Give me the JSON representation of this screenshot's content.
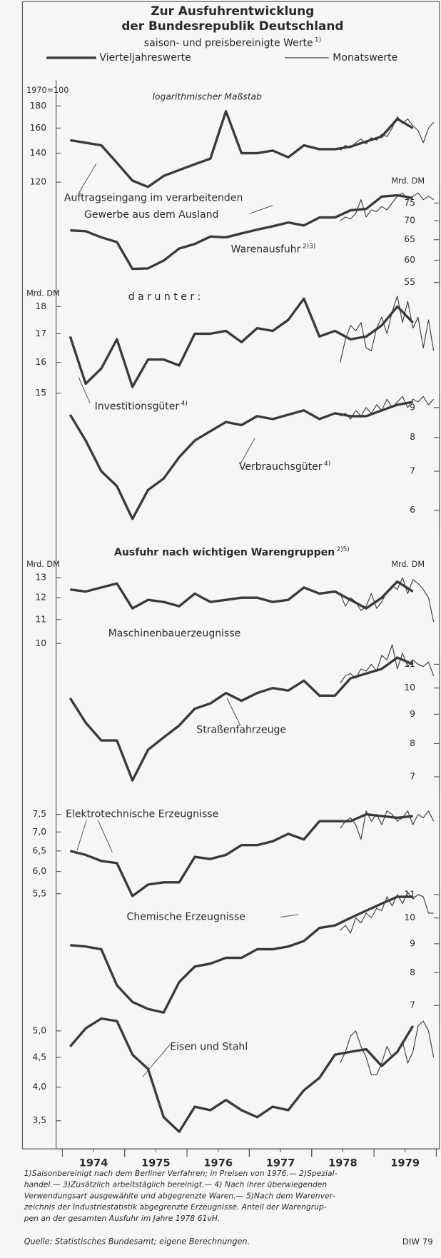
{
  "title": [
    "Zur Ausfuhrentwicklung",
    "der Bundesrepublik Deutschland"
  ],
  "subtitle": "saison- und preisbereinigte Werte",
  "subtitle_note": "1)",
  "legend": [
    "Vierteljahreswerte",
    "Monatswerte"
  ],
  "scale_note": "logarithmischer Maßstab",
  "section_title": "Ausfuhr nach wichtigen Warengruppen",
  "section_note": "2)5)",
  "color": "#3a3a3a",
  "xlim": [
    1973.9,
    1980.05
  ],
  "xticks": [
    {
      "value": 1974.5,
      "label": "1974"
    },
    {
      "value": 1975.5,
      "label": "1975"
    },
    {
      "value": 1976.5,
      "label": "1976"
    },
    {
      "value": 1977.5,
      "label": "1977"
    },
    {
      "value": 1978.5,
      "label": "1978"
    },
    {
      "value": 1979.5,
      "label": "1979"
    }
  ],
  "quarters": [
    1974.125,
    1974.375,
    1974.625,
    1974.875,
    1975.125,
    1975.375,
    1975.625,
    1975.875,
    1976.125,
    1976.375,
    1976.625,
    1976.875,
    1977.125,
    1977.375,
    1977.625,
    1977.875,
    1978.125,
    1978.375,
    1978.625,
    1978.875,
    1979.125,
    1979.375,
    1979.625
  ],
  "months": [
    1978.458,
    1978.542,
    1978.625,
    1978.708,
    1978.792,
    1978.875,
    1978.958,
    1979.042,
    1979.125,
    1979.208,
    1979.292,
    1979.375,
    1979.458,
    1979.542,
    1979.625,
    1979.708,
    1979.792,
    1979.875,
    1979.958
  ],
  "chart_data": [
    {
      "type": "line",
      "label": [
        "Auftragseingang im verarbeitenden",
        "Gewerbe aus dem Ausland"
      ],
      "unit": "1970=100",
      "side": "left",
      "log": true,
      "ylim": [
        110,
        185
      ],
      "yticks": [
        120,
        140,
        160,
        180
      ],
      "series": [
        {
          "values": [
            150,
            148,
            146,
            133,
            121,
            117,
            124,
            128,
            132,
            136,
            175,
            140,
            140,
            142,
            137,
            146,
            143,
            143,
            145,
            149,
            153,
            168,
            160
          ]
        },
        {
          "values": [
            142,
            146,
            144,
            148,
            151,
            147,
            152,
            150,
            155,
            153,
            160,
            170,
            164,
            168,
            162,
            158,
            148,
            160,
            165
          ]
        }
      ]
    },
    {
      "type": "line",
      "label": [
        "Warenausfuhr"
      ],
      "note": "2)3)",
      "unit": "Mrd. DM",
      "side": "right",
      "log": true,
      "ylim": [
        54,
        80
      ],
      "yticks": [
        55,
        60,
        65,
        70,
        75
      ],
      "series": [
        {
          "values": [
            67.4,
            67.2,
            65.6,
            64.4,
            58,
            58.1,
            59.9,
            62.8,
            63.9,
            65.8,
            65.6,
            66.6,
            67.6,
            68.5,
            69.5,
            68.7,
            70.9,
            70.9,
            72.9,
            73.3,
            76.9,
            77.3,
            76.5
          ]
        },
        {
          "values": [
            70,
            71,
            70.5,
            72,
            76,
            71,
            73,
            72.5,
            74,
            73,
            75,
            77,
            78,
            76,
            77,
            78,
            76,
            77,
            76
          ]
        }
      ]
    },
    {
      "type": "line",
      "label": [
        "Investitionsgüter"
      ],
      "note": "4)",
      "annotation": "darunter:",
      "unit": "Mrd. DM",
      "side": "left",
      "log": true,
      "ylim": [
        14.8,
        18.6
      ],
      "yticks": [
        15,
        16,
        17,
        18
      ],
      "series": [
        {
          "values": [
            16.9,
            15.3,
            15.8,
            16.8,
            15.2,
            16.1,
            16.1,
            15.9,
            17.0,
            17.0,
            17.1,
            16.7,
            17.2,
            17.1,
            17.5,
            18.3,
            16.9,
            17.1,
            16.8,
            16.9,
            17.3,
            18.0,
            17.4
          ]
        },
        {
          "values": [
            16.0,
            16.8,
            17.3,
            17.1,
            17.4,
            16.5,
            16.4,
            17.2,
            17.6,
            17.0,
            17.8,
            18.4,
            17.4,
            18.2,
            17.2,
            17.6,
            16.5,
            17.5,
            16.4
          ]
        }
      ]
    },
    {
      "type": "line",
      "label": [
        "Verbrauchsgüter"
      ],
      "note": "4)",
      "side": "right",
      "log": true,
      "ylim": [
        5.5,
        9.5
      ],
      "yticks": [
        6,
        7,
        8,
        9
      ],
      "series": [
        {
          "values": [
            8.75,
            7.9,
            7.0,
            6.6,
            5.8,
            6.5,
            6.8,
            7.4,
            7.9,
            8.2,
            8.5,
            8.4,
            8.7,
            8.6,
            8.75,
            8.9,
            8.6,
            8.8,
            8.7,
            8.7,
            8.9,
            9.1,
            9.2
          ]
        },
        {
          "values": [
            8.7,
            8.8,
            8.6,
            8.9,
            8.7,
            9.0,
            8.8,
            9.1,
            8.9,
            9.3,
            9.0,
            9.2,
            9.4,
            9.0,
            9.3,
            9.2,
            9.4,
            9.1,
            9.3
          ]
        }
      ]
    },
    {
      "type": "line",
      "label": [
        "Maschinenbauerzeugnisse"
      ],
      "unit": "Mrd. DM",
      "side": "left",
      "log": true,
      "ylim": [
        9.5,
        13.5
      ],
      "yticks": [
        10,
        11,
        12,
        13
      ],
      "series": [
        {
          "values": [
            12.4,
            12.3,
            12.5,
            12.7,
            11.5,
            11.9,
            11.8,
            11.6,
            12.2,
            11.8,
            11.9,
            12.0,
            12.0,
            11.8,
            11.9,
            12.5,
            12.2,
            12.3,
            11.9,
            11.5,
            12.0,
            12.8,
            12.3
          ]
        },
        {
          "values": [
            12.2,
            11.6,
            12.0,
            11.8,
            11.4,
            11.6,
            12.2,
            11.5,
            11.8,
            12.3,
            12.6,
            12.4,
            13.0,
            12.2,
            12.9,
            12.7,
            12.4,
            12.0,
            10.9
          ]
        }
      ]
    },
    {
      "type": "line",
      "label": [
        "Straßenfahrzeuge"
      ],
      "unit": "Mrd. DM",
      "side": "right",
      "log": true,
      "ylim": [
        6.5,
        11.5
      ],
      "yticks": [
        7,
        8,
        9,
        10,
        11
      ],
      "series": [
        {
          "values": [
            9.6,
            8.7,
            8.1,
            8.1,
            6.9,
            7.8,
            8.2,
            8.6,
            9.2,
            9.4,
            9.8,
            9.5,
            9.8,
            10.0,
            9.9,
            10.3,
            9.7,
            9.7,
            10.4,
            10.6,
            10.8,
            11.3,
            11.0
          ]
        },
        {
          "values": [
            10.2,
            10.5,
            10.6,
            10.4,
            10.8,
            10.7,
            11.0,
            10.7,
            11.4,
            11.2,
            11.9,
            10.8,
            11.5,
            10.9,
            11.2,
            11.0,
            10.9,
            11.1,
            10.5
          ]
        }
      ]
    },
    {
      "type": "line",
      "label": [
        "Elektrotechnische Erzeugnisse"
      ],
      "side": "left",
      "log": true,
      "ylim": [
        5.2,
        7.8
      ],
      "yticks": [
        {
          "value": 7.5,
          "label": "7,5"
        },
        {
          "value": 7.0,
          "label": "7,0"
        },
        {
          "value": 6.5,
          "label": "6,5"
        },
        {
          "value": 6.0,
          "label": "6,0"
        },
        {
          "value": 5.5,
          "label": "5,5"
        }
      ],
      "series": [
        {
          "values": [
            6.5,
            6.4,
            6.25,
            6.2,
            5.45,
            5.7,
            5.75,
            5.75,
            6.35,
            6.3,
            6.4,
            6.65,
            6.65,
            6.75,
            6.95,
            6.8,
            7.3,
            7.3,
            7.3,
            7.5,
            7.45,
            7.4,
            7.45
          ]
        },
        {
          "values": [
            7.1,
            7.3,
            7.4,
            7.2,
            6.8,
            7.6,
            7.3,
            7.5,
            7.2,
            7.6,
            7.5,
            7.3,
            7.4,
            7.6,
            7.2,
            7.5,
            7.4,
            7.6,
            7.3
          ]
        }
      ]
    },
    {
      "type": "line",
      "label": [
        "Chemische Erzeugnisse"
      ],
      "side": "right",
      "log": true,
      "ylim": [
        6.5,
        11.5
      ],
      "yticks": [
        7,
        8,
        9,
        10,
        11
      ],
      "series": [
        {
          "values": [
            8.95,
            8.9,
            8.8,
            7.6,
            7.1,
            6.9,
            6.8,
            7.7,
            8.2,
            8.3,
            8.5,
            8.5,
            8.8,
            8.8,
            8.9,
            9.1,
            9.6,
            9.7,
            10.0,
            10.3,
            10.6,
            10.9,
            10.9
          ]
        },
        {
          "values": [
            9.5,
            9.7,
            9.4,
            10.0,
            9.8,
            10.2,
            10.0,
            10.4,
            10.3,
            10.9,
            10.5,
            11.0,
            10.6,
            11.1,
            10.8,
            11.0,
            10.9,
            10.2,
            10.2
          ]
        }
      ]
    },
    {
      "type": "line",
      "label": [
        "Eisen und Stahl"
      ],
      "side": "left",
      "log": true,
      "ylim": [
        3.2,
        5.4
      ],
      "yticks": [
        {
          "value": 5,
          "label": "5,0"
        },
        {
          "value": 4.5,
          "label": "4,5"
        },
        {
          "value": 4,
          "label": "4,0"
        },
        {
          "value": 3.5,
          "label": "3,5"
        }
      ],
      "series": [
        {
          "values": [
            4.7,
            5.05,
            5.25,
            5.2,
            4.55,
            4.3,
            3.55,
            3.35,
            3.7,
            3.65,
            3.8,
            3.65,
            3.55,
            3.7,
            3.65,
            3.95,
            4.15,
            4.55,
            4.6,
            4.65,
            4.35,
            4.6,
            5.1
          ]
        },
        {
          "values": [
            4.4,
            4.6,
            4.9,
            5.0,
            4.7,
            4.5,
            4.2,
            4.2,
            4.4,
            4.7,
            4.5,
            4.6,
            4.8,
            4.4,
            4.6,
            5.1,
            5.2,
            5.0,
            4.5
          ]
        }
      ]
    }
  ],
  "footnotes": [
    "1)Saisonbereinigt nach dem Berliner Verfahren; in Preisen von 1976.— 2)Spezial-",
    "handel.— 3)Zusätzlich arbeitstäglich bereinigt.— 4) Nach ihrer überwiegenden",
    "Verwendungsart ausgewählte und abgegrenzte Waren.— 5)Nach dem Warenver-",
    "zeichnis der Industriestatistik abgegrenzte Erzeugnisse. Anteil der Warengrup-",
    "pen an der gesamten Ausfuhr im Jahre 1978 61vH."
  ],
  "source": "Quelle: Statistisches Bundesamt; eigene Berechnungen.",
  "credit": "DIW 79"
}
